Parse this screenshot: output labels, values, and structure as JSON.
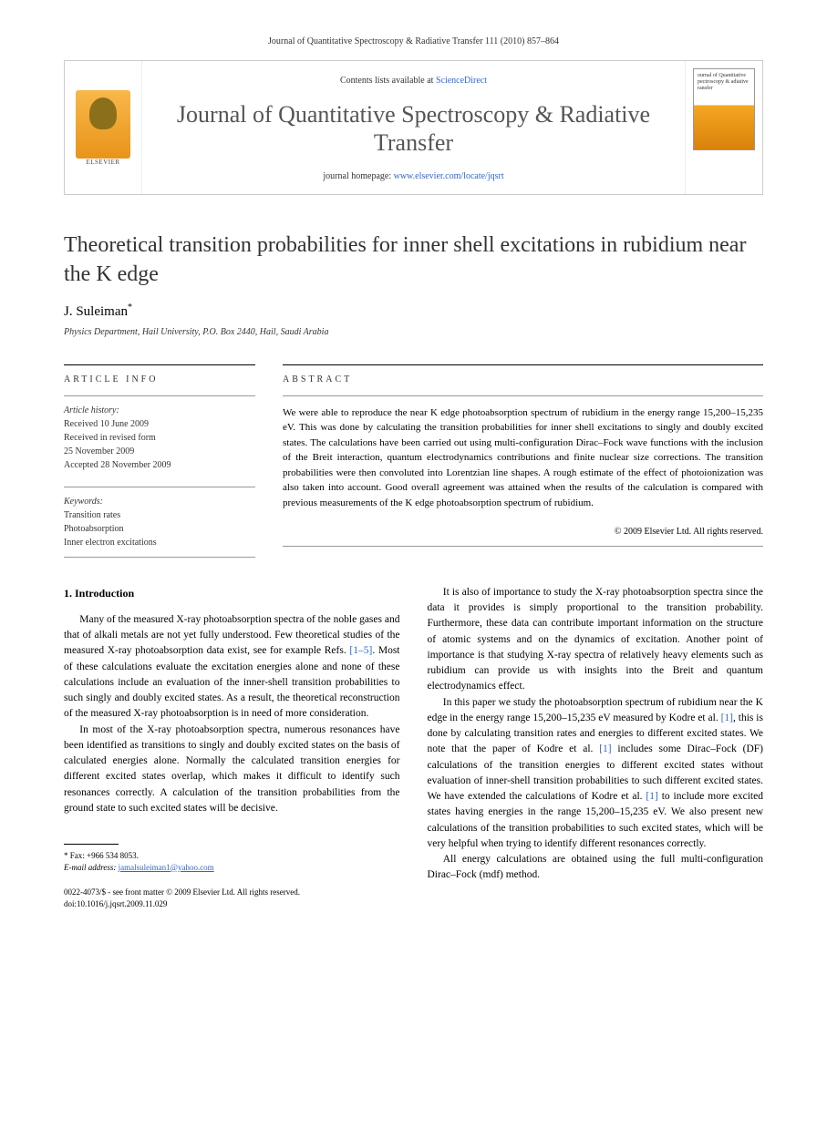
{
  "running_header": "Journal of Quantitative Spectroscopy & Radiative Transfer 111 (2010) 857–864",
  "masthead": {
    "contents_prefix": "Contents lists available at ",
    "contents_link": "ScienceDirect",
    "journal_name": "Journal of Quantitative Spectroscopy & Radiative Transfer",
    "homepage_prefix": "journal homepage: ",
    "homepage_url": "www.elsevier.com/locate/jqsrt",
    "publisher_label": "ELSEVIER",
    "cover_text": "ournal of\nQuantitative\npectroscopy &\nadiative\nransfer"
  },
  "article": {
    "title": "Theoretical transition probabilities for inner shell excitations in rubidium near the K edge",
    "author": "J. Suleiman",
    "author_marker": "*",
    "affiliation": "Physics Department, Hail University, P.O. Box 2440, Hail, Saudi Arabia"
  },
  "info": {
    "heading": "ARTICLE INFO",
    "history_label": "Article history:",
    "received": "Received 10 June 2009",
    "revised": "Received in revised form",
    "revised_date": "25 November 2009",
    "accepted": "Accepted 28 November 2009",
    "keywords_label": "Keywords:",
    "keywords": [
      "Transition rates",
      "Photoabsorption",
      "Inner electron excitations"
    ]
  },
  "abstract": {
    "heading": "ABSTRACT",
    "text": "We were able to reproduce the near K edge photoabsorption spectrum of rubidium in the energy range 15,200–15,235 eV. This was done by calculating the transition probabilities for inner shell excitations to singly and doubly excited states. The calculations have been carried out using multi-configuration Dirac–Fock wave functions with the inclusion of the Breit interaction, quantum electrodynamics contributions and finite nuclear size corrections. The transition probabilities were then convoluted into Lorentzian line shapes. A rough estimate of the effect of photoionization was also taken into account. Good overall agreement was attained when the results of the calculation is compared with previous measurements of the K edge photoabsorption spectrum of rubidium.",
    "copyright": "© 2009 Elsevier Ltd. All rights reserved."
  },
  "body": {
    "section_number": "1.",
    "section_title": "Introduction",
    "col1_p1": "Many of the measured X-ray photoabsorption spectra of the noble gases and that of alkali metals are not yet fully understood. Few theoretical studies of the measured X-ray photoabsorption data exist, see for example Refs. [1–5]. Most of these calculations evaluate the excitation energies alone and none of these calculations include an evaluation of the inner-shell transition probabilities to such singly and doubly excited states. As a result, the theoretical reconstruction of the measured X-ray photoabsorption is in need of more consideration.",
    "col1_p2": "In most of the X-ray photoabsorption spectra, numerous resonances have been identified as transitions to singly and doubly excited states on the basis of calculated energies alone. Normally the calculated transition energies for different excited states overlap, which makes it difficult to identify such resonances correctly. A calculation of the transition probabilities from the ground state to such excited states will be decisive.",
    "col2_p1": "It is also of importance to study the X-ray photoabsorption spectra since the data it provides is simply proportional to the transition probability. Furthermore, these data can contribute important information on the structure of atomic systems and on the dynamics of excitation. Another point of importance is that studying X-ray spectra of relatively heavy elements such as rubidium can provide us with insights into the Breit and quantum electrodynamics effect.",
    "col2_p2": "In this paper we study the photoabsorption spectrum of rubidium near the K edge in the energy range 15,200–15,235 eV measured by Kodre et al. [1], this is done by calculating transition rates and energies to different excited states. We note that the paper of Kodre et al. [1] includes some Dirac–Fock (DF) calculations of the transition energies to different excited states without evaluation of inner-shell transition probabilities to such different excited states. We have extended the calculations of Kodre et al. [1] to include more excited states having energies in the range 15,200–15,235 eV. We also present new calculations of the transition probabilities to such excited states, which will be very helpful when trying to identify different resonances correctly.",
    "col2_p3": "All energy calculations are obtained using the full multi-configuration Dirac–Fock (mdf) method."
  },
  "footnote": {
    "fax_label": "* Fax: ",
    "fax": "+966 534 8053.",
    "email_label": "E-mail address: ",
    "email": "jamalsuleiman1@yahoo.com"
  },
  "footer": {
    "issn_line": "0022-4073/$ - see front matter © 2009 Elsevier Ltd. All rights reserved.",
    "doi": "doi:10.1016/j.jqsrt.2009.11.029"
  },
  "refs": {
    "r1_5": "[1–5]",
    "r1": "[1]"
  }
}
